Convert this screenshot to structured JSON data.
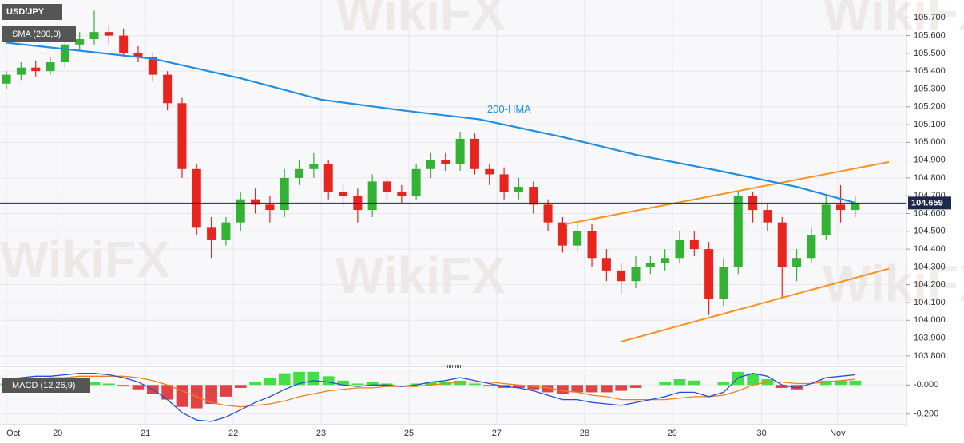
{
  "chart_data": [
    {
      "type": "candlestick",
      "title": "USD/JPY",
      "subtitle": "SMA (200,0)",
      "watermark": "WikiFX",
      "up_color": "#33b233",
      "down_color": "#e8241f",
      "x": [
        0,
        1,
        2,
        3,
        4,
        5,
        6,
        7,
        8,
        9,
        10,
        11,
        12,
        13,
        14,
        15,
        16,
        17,
        18,
        19,
        20,
        21,
        22,
        23,
        24,
        25,
        26,
        27,
        28,
        29,
        30,
        31,
        32,
        33,
        34,
        35,
        36,
        37,
        38,
        39,
        40,
        41,
        42,
        43,
        44,
        45,
        46,
        47,
        48,
        49,
        50,
        51,
        52,
        53,
        54,
        55,
        56,
        57,
        58
      ],
      "open": [
        105.33,
        105.38,
        105.42,
        105.4,
        105.45,
        105.55,
        105.58,
        105.62,
        105.6,
        105.5,
        105.48,
        105.38,
        105.22,
        104.85,
        104.52,
        104.45,
        104.55,
        104.68,
        104.65,
        104.62,
        104.8,
        104.85,
        104.88,
        104.72,
        104.7,
        104.62,
        104.78,
        104.72,
        104.7,
        104.85,
        104.9,
        104.88,
        105.02,
        104.85,
        104.82,
        104.72,
        104.75,
        104.65,
        104.55,
        104.42,
        104.5,
        104.35,
        104.28,
        104.22,
        104.3,
        104.32,
        104.35,
        104.45,
        104.4,
        104.12,
        104.3,
        104.7,
        104.62,
        104.55,
        104.3,
        104.35,
        104.48,
        104.65,
        104.62
      ],
      "high": [
        105.4,
        105.45,
        105.46,
        105.48,
        105.58,
        105.62,
        105.74,
        105.66,
        105.64,
        105.54,
        105.5,
        105.4,
        105.25,
        104.88,
        104.58,
        104.58,
        104.72,
        104.74,
        104.7,
        104.85,
        104.9,
        104.94,
        104.9,
        104.76,
        104.74,
        104.82,
        104.8,
        104.76,
        104.88,
        104.94,
        104.94,
        105.06,
        105.05,
        104.88,
        104.86,
        104.8,
        104.78,
        104.68,
        104.58,
        104.56,
        104.54,
        104.4,
        104.32,
        104.36,
        104.36,
        104.4,
        104.5,
        104.5,
        104.44,
        104.35,
        104.72,
        104.72,
        104.66,
        104.58,
        104.4,
        104.52,
        104.7,
        104.76,
        104.7
      ],
      "low": [
        105.3,
        105.35,
        105.37,
        105.38,
        105.42,
        105.52,
        105.55,
        105.55,
        105.48,
        105.45,
        105.34,
        105.18,
        104.8,
        104.48,
        104.35,
        104.42,
        104.5,
        104.6,
        104.55,
        104.58,
        104.76,
        104.8,
        104.68,
        104.64,
        104.55,
        104.58,
        104.68,
        104.66,
        104.68,
        104.8,
        104.84,
        104.84,
        104.82,
        104.76,
        104.68,
        104.68,
        104.6,
        104.5,
        104.38,
        104.38,
        104.3,
        104.22,
        104.15,
        104.18,
        104.26,
        104.28,
        104.32,
        104.36,
        104.03,
        104.08,
        104.26,
        104.55,
        104.5,
        104.13,
        104.22,
        104.32,
        104.45,
        104.55,
        104.58
      ],
      "close": [
        105.38,
        105.42,
        105.4,
        105.45,
        105.55,
        105.58,
        105.62,
        105.6,
        105.5,
        105.48,
        105.38,
        105.22,
        104.85,
        104.52,
        104.45,
        104.55,
        104.68,
        104.65,
        104.62,
        104.8,
        104.85,
        104.88,
        104.72,
        104.7,
        104.62,
        104.78,
        104.72,
        104.7,
        104.85,
        104.9,
        104.88,
        105.02,
        104.85,
        104.82,
        104.72,
        104.75,
        104.65,
        104.55,
        104.42,
        104.5,
        104.35,
        104.28,
        104.22,
        104.3,
        104.32,
        104.35,
        104.45,
        104.4,
        104.12,
        104.3,
        104.7,
        104.62,
        104.55,
        104.3,
        104.35,
        104.48,
        104.65,
        104.62,
        104.659
      ],
      "series": [
        {
          "name": "200-HMA",
          "color": "#1f8fe6",
          "x": [
            0,
            10,
            16,
            21.5,
            27,
            32.3,
            38,
            43,
            48.7,
            54,
            58
          ],
          "values": [
            105.56,
            105.47,
            105.36,
            105.24,
            105.18,
            105.13,
            105.03,
            104.93,
            104.84,
            104.75,
            104.66
          ]
        }
      ],
      "lines": [
        {
          "color": "#f7931e",
          "x": [
            38.2,
            60.3
          ],
          "values": [
            104.54,
            104.89
          ]
        },
        {
          "color": "#f7931e",
          "x": [
            42,
            60.3
          ],
          "values": [
            103.88,
            104.29
          ]
        }
      ],
      "last_price": 104.659,
      "xlim": [
        -0.44,
        61.5
      ],
      "xticks": [
        {
          "value": 0,
          "label": "Oct"
        },
        {
          "value": 3.5,
          "label": "20"
        },
        {
          "value": 9.5,
          "label": "21"
        },
        {
          "value": 15.5,
          "label": "22"
        },
        {
          "value": 21.5,
          "label": "23"
        },
        {
          "value": 27.5,
          "label": "25"
        },
        {
          "value": 33.5,
          "label": "27"
        },
        {
          "value": 39.5,
          "label": "28"
        },
        {
          "value": 45.5,
          "label": "29"
        },
        {
          "value": 51.6,
          "label": "30"
        },
        {
          "value": 56.8,
          "label": "Nov"
        }
      ],
      "ylim": [
        103.75,
        105.8
      ],
      "yticks": [
        {
          "value": 105.7,
          "label": "105.700"
        },
        {
          "value": 105.6,
          "label": "105.600"
        },
        {
          "value": 105.5,
          "label": "105.500"
        },
        {
          "value": 105.4,
          "label": "105.400"
        },
        {
          "value": 105.3,
          "label": "105.300"
        },
        {
          "value": 105.2,
          "label": "105.200"
        },
        {
          "value": 105.1,
          "label": "105.100"
        },
        {
          "value": 105.0,
          "label": "105.000"
        },
        {
          "value": 104.9,
          "label": "104.900"
        },
        {
          "value": 104.8,
          "label": "104.800"
        },
        {
          "value": 104.7,
          "label": "104.700"
        },
        {
          "value": 104.6,
          "label": "104.600"
        },
        {
          "value": 104.5,
          "label": "104.500"
        },
        {
          "value": 104.4,
          "label": "104.400"
        },
        {
          "value": 104.3,
          "label": "104.300"
        },
        {
          "value": 104.2,
          "label": "104.200"
        },
        {
          "value": 104.1,
          "label": "104.100"
        },
        {
          "value": 104.0,
          "label": "104.000"
        },
        {
          "value": 103.9,
          "label": "103.900"
        },
        {
          "value": 103.8,
          "label": "103.800"
        }
      ],
      "grid": true
    },
    {
      "type": "macd",
      "title": "MACD (12,26,9)",
      "macd": [
        0.04,
        0.05,
        0.06,
        0.06,
        0.07,
        0.08,
        0.08,
        0.07,
        0.05,
        0.02,
        -0.03,
        -0.1,
        -0.19,
        -0.24,
        -0.25,
        -0.22,
        -0.17,
        -0.12,
        -0.08,
        -0.03,
        0.01,
        0.03,
        0.02,
        0.0,
        -0.01,
        0.0,
        0.0,
        -0.01,
        0.0,
        0.02,
        0.03,
        0.05,
        0.03,
        0.01,
        -0.01,
        -0.02,
        -0.04,
        -0.07,
        -0.1,
        -0.1,
        -0.12,
        -0.13,
        -0.14,
        -0.12,
        -0.1,
        -0.08,
        -0.05,
        -0.05,
        -0.08,
        -0.05,
        0.05,
        0.08,
        0.06,
        0.0,
        -0.02,
        0.01,
        0.05,
        0.06,
        0.07
      ],
      "signal": [
        0.03,
        0.04,
        0.04,
        0.05,
        0.05,
        0.06,
        0.06,
        0.06,
        0.06,
        0.05,
        0.03,
        0.0,
        -0.04,
        -0.08,
        -0.12,
        -0.14,
        -0.15,
        -0.14,
        -0.13,
        -0.11,
        -0.08,
        -0.06,
        -0.04,
        -0.03,
        -0.02,
        -0.02,
        -0.01,
        -0.01,
        -0.01,
        0.0,
        0.01,
        0.02,
        0.02,
        0.02,
        0.01,
        0.0,
        -0.01,
        -0.02,
        -0.04,
        -0.05,
        -0.07,
        -0.08,
        -0.1,
        -0.1,
        -0.1,
        -0.1,
        -0.09,
        -0.08,
        -0.08,
        -0.07,
        -0.04,
        0.0,
        0.02,
        0.02,
        0.01,
        0.01,
        0.02,
        0.03,
        0.04
      ],
      "histogram": [
        0.01,
        0.01,
        0.02,
        0.01,
        0.02,
        0.02,
        0.02,
        0.01,
        -0.01,
        -0.03,
        -0.06,
        -0.1,
        -0.15,
        -0.16,
        -0.13,
        -0.08,
        -0.02,
        0.02,
        0.05,
        0.08,
        0.09,
        0.09,
        0.06,
        0.03,
        0.01,
        0.02,
        0.01,
        0.0,
        0.01,
        0.02,
        0.02,
        0.03,
        0.01,
        -0.01,
        -0.02,
        -0.02,
        -0.03,
        -0.05,
        -0.06,
        -0.05,
        -0.05,
        -0.05,
        -0.04,
        -0.02,
        0.0,
        0.02,
        0.04,
        0.03,
        0.0,
        0.02,
        0.09,
        0.08,
        0.04,
        -0.02,
        -0.03,
        0.0,
        0.03,
        0.03,
        0.03
      ],
      "macd_color": "#2250dd",
      "signal_color": "#f0801e",
      "up_color": "#22dd22",
      "down_color": "#dd2222",
      "ylim": [
        -0.272,
        0.111
      ],
      "yticks": [
        {
          "value": 0,
          "label": "-0.000"
        },
        {
          "value": -0.2,
          "label": "-0.200"
        }
      ]
    }
  ]
}
